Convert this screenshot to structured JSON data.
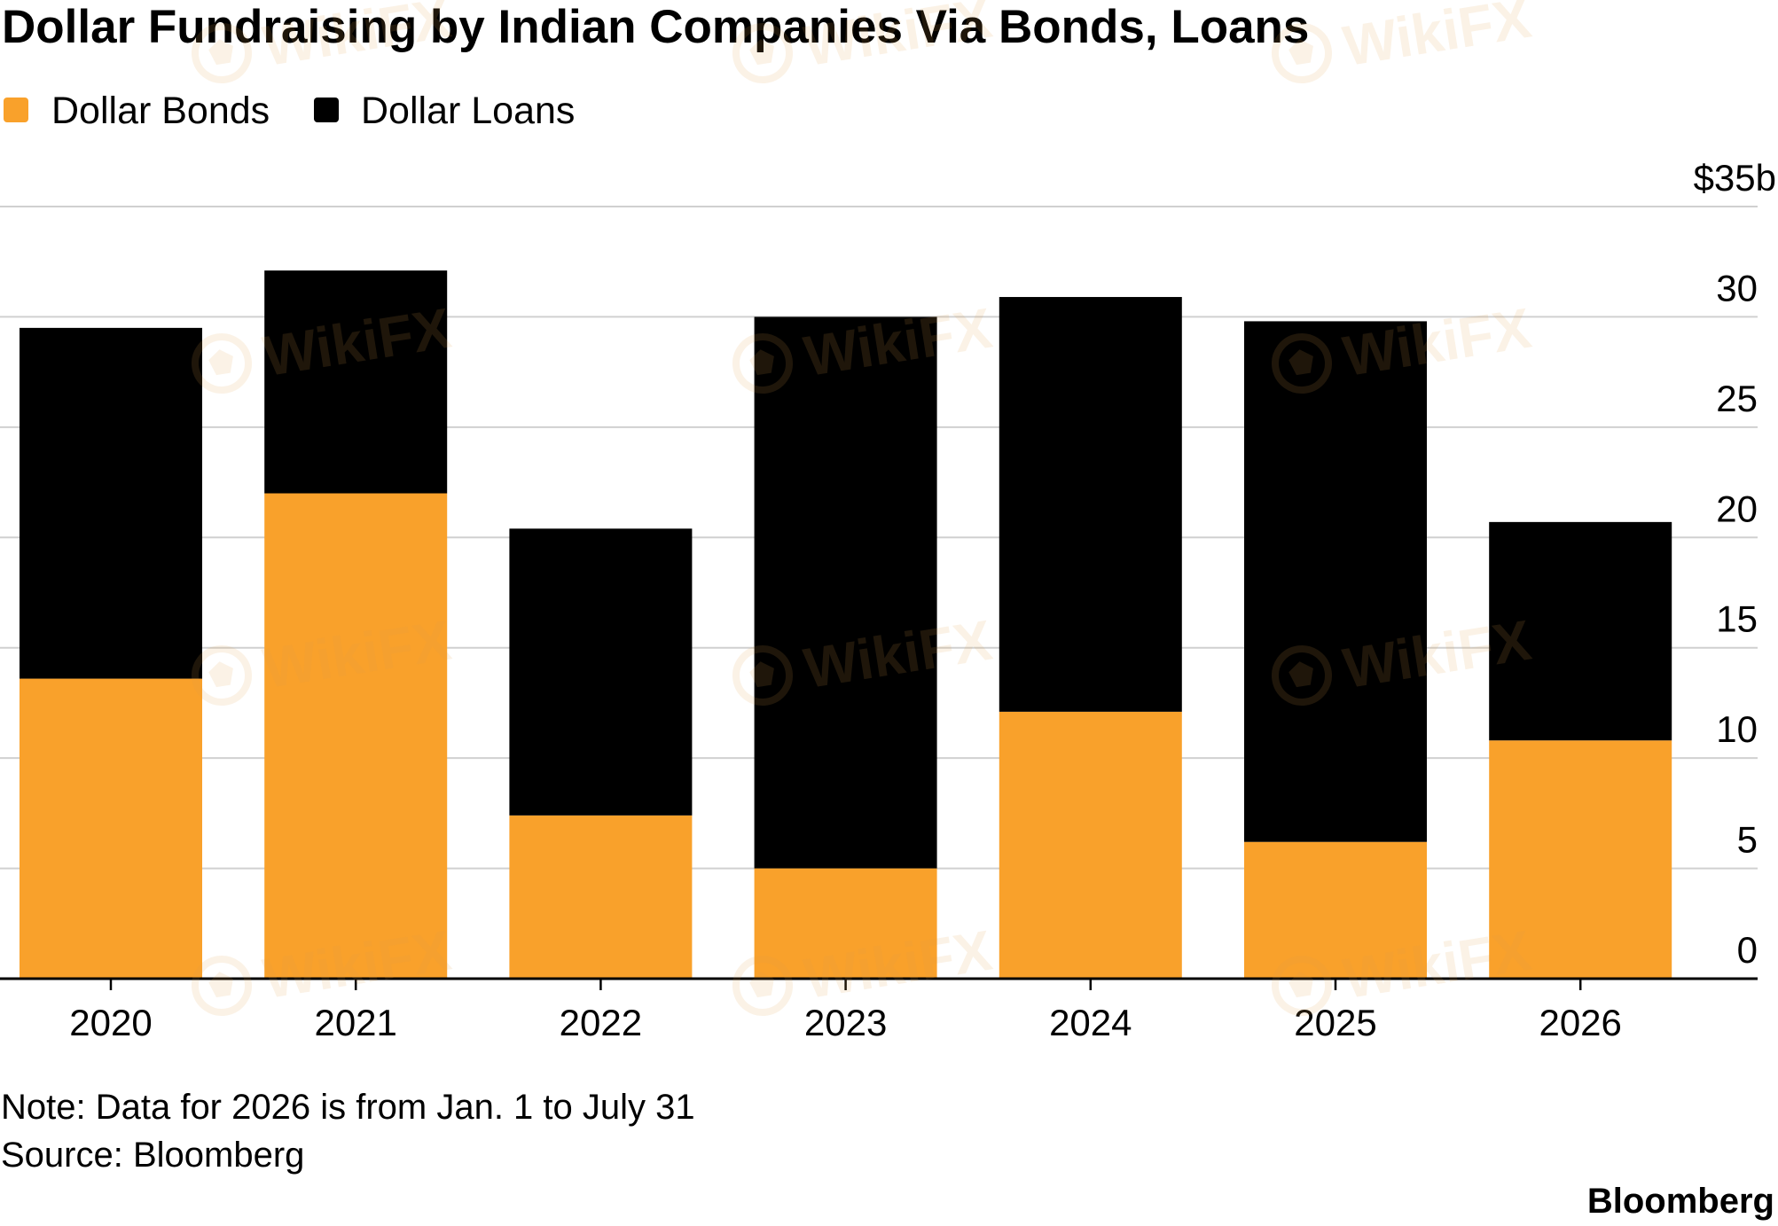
{
  "chart_data": {
    "type": "bar",
    "stacked": true,
    "title": "Dollar Fundraising by Indian Companies Via Bonds, Loans",
    "categories": [
      "2020",
      "2021",
      "2022",
      "2023",
      "2024",
      "2025",
      "2026"
    ],
    "series": [
      {
        "name": "Dollar Bonds",
        "color": "#F9A12B",
        "values": [
          13.6,
          22.0,
          7.4,
          5.0,
          12.1,
          6.2,
          10.8
        ]
      },
      {
        "name": "Dollar Loans",
        "color": "#000000",
        "values": [
          15.9,
          10.1,
          13.0,
          25.0,
          18.8,
          23.6,
          9.9
        ]
      }
    ],
    "ylim": [
      0,
      35
    ],
    "yticks": [
      0,
      5,
      10,
      15,
      20,
      25,
      30,
      35
    ],
    "ytick_labels": [
      "0",
      "5",
      "10",
      "15",
      "20",
      "25",
      "30",
      "$35b"
    ],
    "y_axis_side": "right",
    "grid": true,
    "legend": "top-left",
    "note": "Note: Data for 2026 is from Jan. 1 to July 31",
    "source": "Source: Bloomberg"
  },
  "brand": "Bloomberg",
  "watermark": "WikiFX"
}
